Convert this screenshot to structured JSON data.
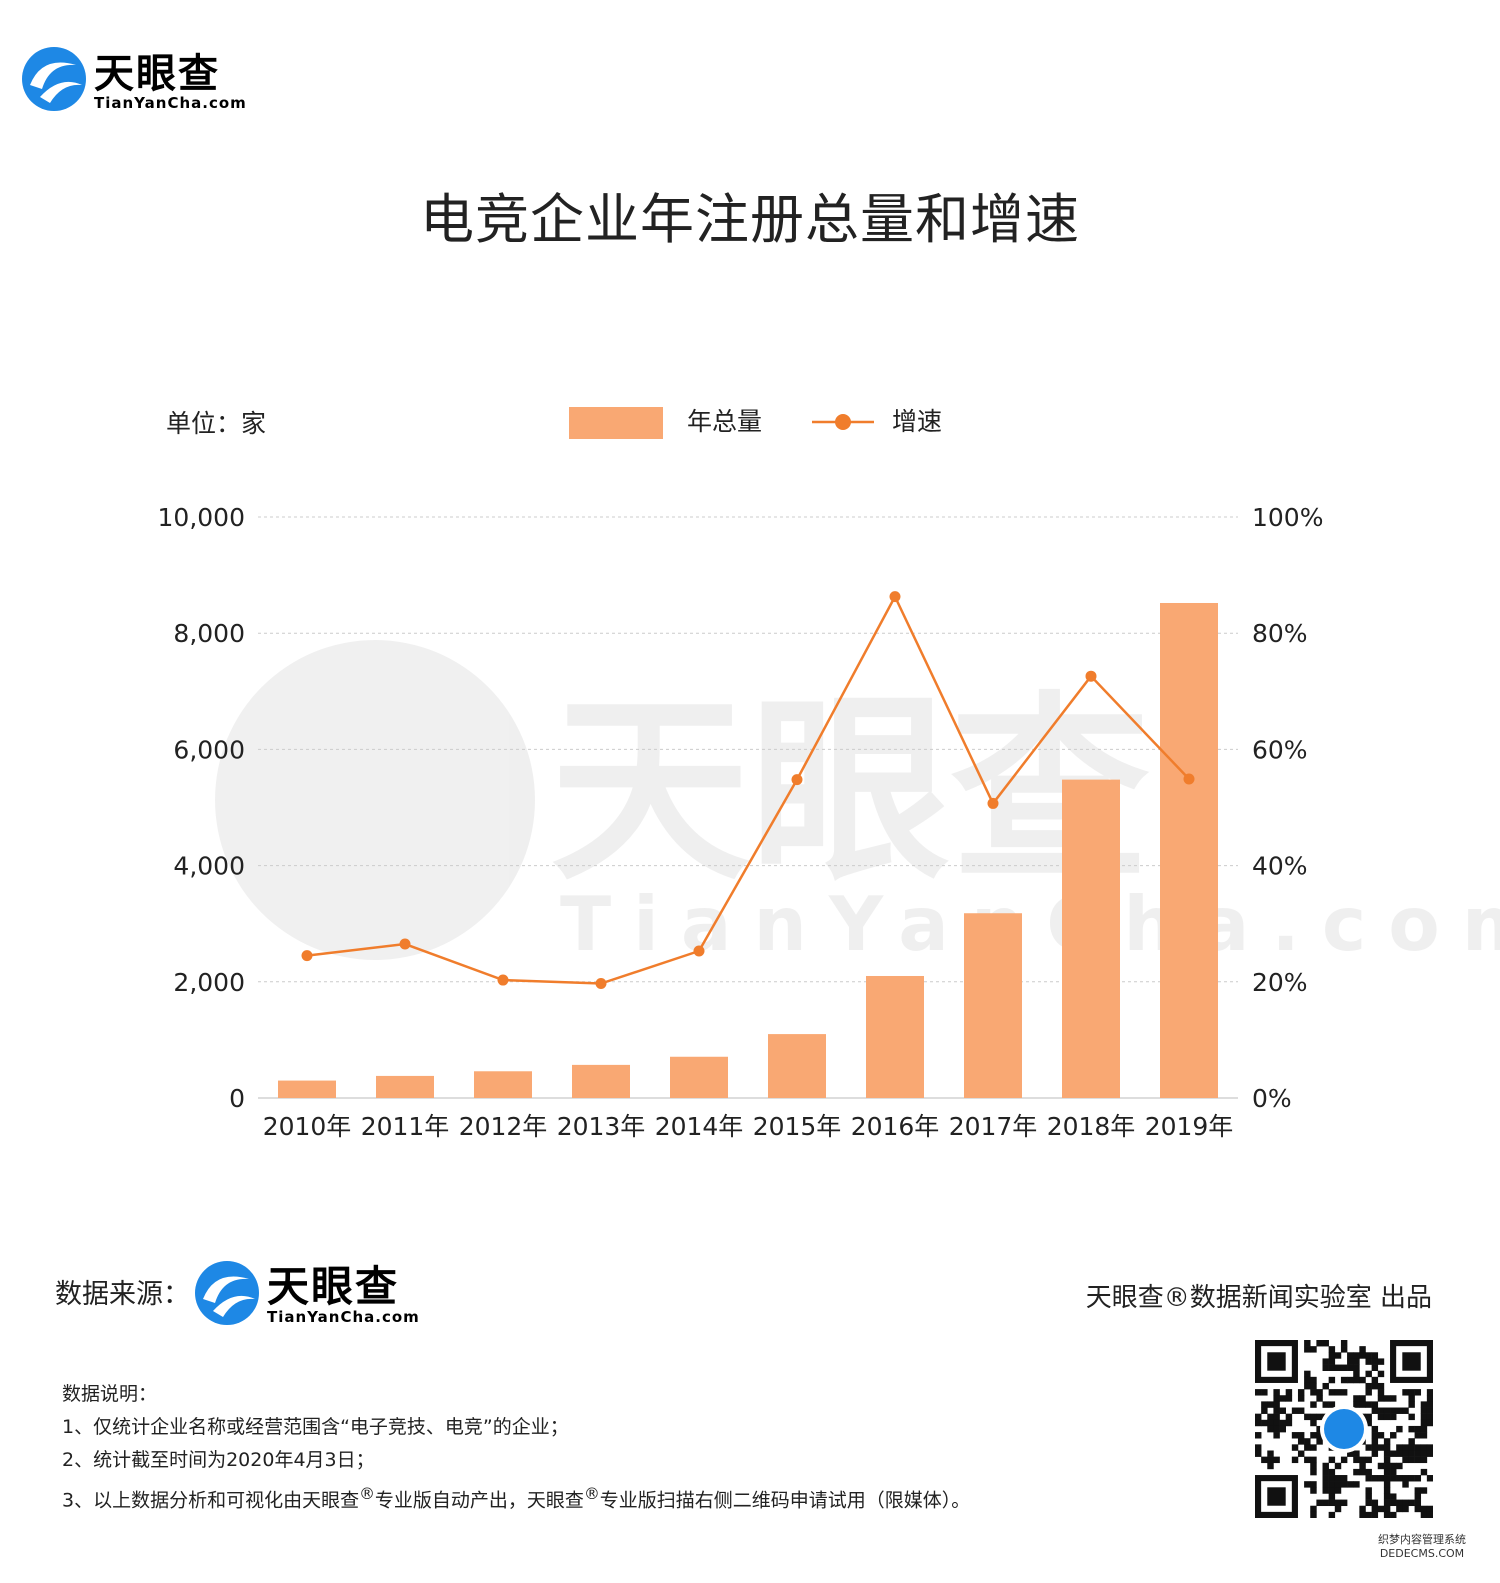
{
  "brand": {
    "logo_cn": "天眼查",
    "logo_en": "TianYanCha.com",
    "brand_color": "#1e88e5"
  },
  "title": "电竞企业年注册总量和增速",
  "source": {
    "label": "数据来源："
  },
  "credit": "天眼查®数据新闻实验室 出品",
  "notes": {
    "heading": "数据说明：",
    "line1": "1、仅统计企业名称或经营范围含“电子竞技、电竞”的企业；",
    "line2": "2、统计截至时间为2020年4月3日；",
    "line3_a": "3、以上数据分析和可视化由天眼查",
    "line3_b": "专业版自动产出，天眼查",
    "line3_c": "专业版扫描右侧二维码申请试用（限媒体）。",
    "reg_mark": "®"
  },
  "corner_mark": {
    "line1": "织梦内容管理系统",
    "line2": "DEDECMS.COM"
  },
  "chart_data": {
    "type": "bar",
    "unit_label": "单位：家",
    "categories": [
      "2010年",
      "2011年",
      "2012年",
      "2013年",
      "2014年",
      "2015年",
      "2016年",
      "2017年",
      "2018年",
      "2019年"
    ],
    "series": [
      {
        "name": "年总量",
        "type": "bar",
        "axis": "left",
        "color": "#f9a873",
        "values": [
          300,
          380,
          460,
          570,
          710,
          1100,
          2100,
          3180,
          5480,
          8520
        ]
      },
      {
        "name": "增速",
        "type": "line",
        "axis": "right",
        "color": "#f07d2c",
        "values": [
          24.5,
          26.5,
          20.3,
          19.7,
          25.3,
          54.8,
          86.3,
          50.7,
          72.6,
          54.9
        ]
      }
    ],
    "left_axis": {
      "ylim": [
        0,
        10000
      ],
      "ticks": [
        "0",
        "2,000",
        "4,000",
        "6,000",
        "8,000",
        "10,000"
      ]
    },
    "right_axis": {
      "ylim": [
        0,
        100
      ],
      "ticks": [
        "0%",
        "20%",
        "40%",
        "60%",
        "80%",
        "100%"
      ]
    },
    "legend_position": "top-center",
    "grid": true
  }
}
